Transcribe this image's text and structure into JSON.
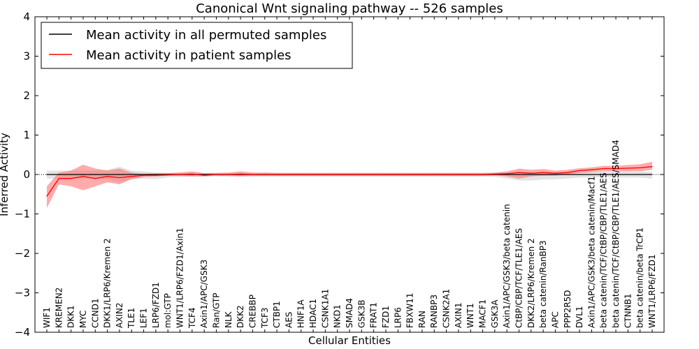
{
  "chart_data": {
    "type": "line",
    "title": "Canonical Wnt signaling pathway -- 526 samples",
    "xlabel": "Cellular Entities",
    "ylabel": "Inferred Activity",
    "ylim": [
      -4,
      4
    ],
    "yticks": [
      -4,
      -3,
      -2,
      -1,
      0,
      1,
      2,
      3,
      4
    ],
    "ytick_labels": [
      "−4",
      "−3",
      "−2",
      "−1",
      "0",
      "1",
      "2",
      "3",
      "4"
    ],
    "grid": false,
    "legend_position": "top-left",
    "categories": [
      "WIF1",
      "KREMEN2",
      "DKK1",
      "MYC",
      "CCND1",
      "DKK1/LRP6/Kremen 2",
      "AXIN2",
      "TLE1",
      "LEF1",
      "LRP6/FZD1",
      "mol:GTP",
      "WNT1/LRP6/FZD1/Axin1",
      "TCF4",
      "Axin1/APC/GSK3",
      "Ran/GTP",
      "NLK",
      "DKK2",
      "CREBBP",
      "TCF3",
      "CTBP1",
      "AES",
      "HNF1A",
      "HDAC1",
      "CSNK1A1",
      "NKD1",
      "SMAD4",
      "GSK3B",
      "FRAT1",
      "FZD1",
      "LRP6",
      "FBXW11",
      "RAN",
      "RANBP3",
      "CSNK2A1",
      "AXIN1",
      "WNT1",
      "MACF1",
      "GSK3A",
      "Axin1/APC/GSK3/beta catenin",
      "CtBP/CBP/TCF/TLE1/AES",
      "DKK2/LRP6/Kremen 2",
      "beta catenin/RanBP3",
      "APC",
      "PPP2R5D",
      "DVL1",
      "Axin1/APC/GSK3/beta catenin/Macf1",
      "beta catenin/TCF/CtBP/CBP/TLE1/AES",
      "beta catenin/TCF/CtBP/CBP/TLE1/AES/SMAD4",
      "CTNNB1",
      "beta catenin/beta TrCP1",
      "WNT1/LRP6/FZD1"
    ],
    "series": [
      {
        "name": "Mean activity in all permuted samples",
        "color": "#000000",
        "band_color": "#cccccc",
        "values": [
          0,
          0,
          0,
          0,
          0,
          0,
          0,
          0,
          0,
          0,
          0,
          0,
          0,
          0,
          0,
          0,
          0,
          0,
          0,
          0,
          0,
          0,
          0,
          0,
          0,
          0,
          0,
          0,
          0,
          0,
          0,
          0,
          0,
          0,
          0,
          0,
          0,
          0,
          0,
          0,
          0,
          0,
          0,
          0,
          0,
          0,
          0,
          0,
          0,
          0,
          0
        ],
        "upper": [
          0.1,
          0.1,
          0.1,
          0.1,
          0.1,
          0.12,
          0.2,
          0.1,
          0.08,
          0.05,
          0.05,
          0.05,
          0.05,
          0.04,
          0.04,
          0.04,
          0.04,
          0.04,
          0.04,
          0.04,
          0.04,
          0.04,
          0.04,
          0.04,
          0.04,
          0.04,
          0.04,
          0.04,
          0.04,
          0.04,
          0.04,
          0.04,
          0.04,
          0.04,
          0.04,
          0.04,
          0.04,
          0.04,
          0.05,
          0.06,
          0.06,
          0.06,
          0.06,
          0.06,
          0.06,
          0.07,
          0.07,
          0.07,
          0.07,
          0.07,
          0.07
        ],
        "lower": [
          -0.1,
          -0.1,
          -0.1,
          -0.1,
          -0.1,
          -0.12,
          -0.2,
          -0.12,
          -0.1,
          -0.12,
          -0.07,
          -0.06,
          -0.05,
          -0.05,
          -0.05,
          -0.05,
          -0.05,
          -0.05,
          -0.05,
          -0.05,
          -0.05,
          -0.05,
          -0.05,
          -0.05,
          -0.05,
          -0.05,
          -0.05,
          -0.05,
          -0.05,
          -0.05,
          -0.05,
          -0.05,
          -0.05,
          -0.05,
          -0.05,
          -0.05,
          -0.05,
          -0.06,
          -0.1,
          -0.15,
          -0.15,
          -0.13,
          -0.12,
          -0.1,
          -0.08,
          -0.07,
          -0.07,
          -0.07,
          -0.08,
          -0.08,
          -0.1
        ]
      },
      {
        "name": "Mean activity in patient samples",
        "color": "#ff0000",
        "band_color": "#ff6666",
        "values": [
          -0.55,
          -0.1,
          -0.1,
          -0.05,
          -0.1,
          -0.05,
          -0.08,
          -0.05,
          -0.02,
          -0.02,
          -0.01,
          0,
          0.01,
          -0.02,
          0,
          0,
          0.01,
          0,
          0,
          0,
          0,
          0,
          0,
          0,
          0,
          0,
          0,
          0,
          0,
          0,
          0,
          0,
          0,
          0,
          0,
          0,
          0,
          0.01,
          0.02,
          0.05,
          0.03,
          0.05,
          0.03,
          0.05,
          0.1,
          0.12,
          0.15,
          0.15,
          0.16,
          0.17,
          0.2
        ],
        "upper": [
          -0.3,
          0.05,
          0.1,
          0.25,
          0.15,
          0.1,
          0.15,
          0.05,
          0.02,
          0.03,
          0.03,
          0.05,
          0.08,
          0.03,
          0.04,
          0.05,
          0.08,
          0.05,
          0.05,
          0.04,
          0.04,
          0.04,
          0.04,
          0.04,
          0.04,
          0.04,
          0.04,
          0.04,
          0.04,
          0.04,
          0.04,
          0.04,
          0.04,
          0.04,
          0.04,
          0.04,
          0.04,
          0.05,
          0.08,
          0.15,
          0.12,
          0.14,
          0.1,
          0.12,
          0.16,
          0.18,
          0.22,
          0.22,
          0.24,
          0.26,
          0.32
        ],
        "lower": [
          -0.85,
          -0.25,
          -0.3,
          -0.4,
          -0.3,
          -0.2,
          -0.25,
          -0.12,
          -0.06,
          -0.05,
          -0.03,
          -0.04,
          -0.05,
          -0.05,
          -0.03,
          -0.04,
          -0.05,
          -0.04,
          -0.04,
          -0.04,
          -0.04,
          -0.04,
          -0.04,
          -0.04,
          -0.04,
          -0.04,
          -0.04,
          -0.04,
          -0.04,
          -0.04,
          -0.04,
          -0.04,
          -0.04,
          -0.04,
          -0.04,
          -0.04,
          -0.04,
          -0.02,
          -0.05,
          -0.1,
          -0.05,
          -0.03,
          -0.03,
          0,
          0.04,
          0.06,
          0.08,
          0.08,
          0.08,
          0.08,
          0.12
        ]
      }
    ]
  }
}
